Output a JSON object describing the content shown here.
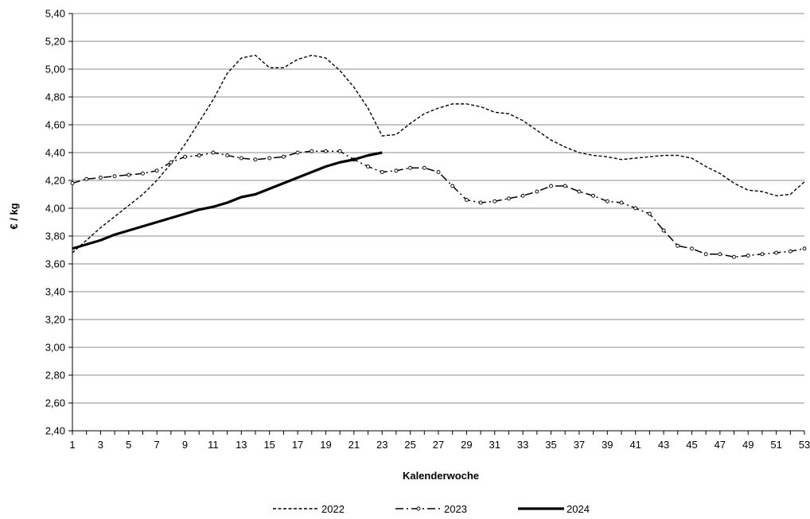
{
  "chart_data": {
    "type": "line",
    "xlabel": "Kalenderwoche",
    "ylabel": "€ / kg",
    "xlim": [
      1,
      53
    ],
    "ylim": [
      2.4,
      5.4
    ],
    "y_ticks": [
      "2,40",
      "2,60",
      "2,80",
      "3,00",
      "3,20",
      "3,40",
      "3,60",
      "3,80",
      "4,00",
      "4,20",
      "4,40",
      "4,60",
      "4,80",
      "5,00",
      "5,20",
      "5,40"
    ],
    "x_ticks": [
      "1",
      "3",
      "5",
      "7",
      "9",
      "11",
      "13",
      "15",
      "17",
      "19",
      "21",
      "23",
      "25",
      "27",
      "29",
      "31",
      "33",
      "35",
      "37",
      "39",
      "41",
      "43",
      "45",
      "47",
      "49",
      "51",
      "53"
    ],
    "grid": "horizontal",
    "legend": "bottom",
    "series": [
      {
        "name": "2022",
        "style": "dashed",
        "color": "#000000",
        "x": [
          1,
          2,
          3,
          4,
          5,
          6,
          7,
          8,
          9,
          10,
          11,
          12,
          13,
          14,
          15,
          16,
          17,
          18,
          19,
          20,
          21,
          22,
          23,
          24,
          25,
          26,
          27,
          28,
          29,
          30,
          31,
          32,
          33,
          34,
          35,
          36,
          37,
          38,
          39,
          40,
          41,
          42,
          43,
          44,
          45,
          46,
          47,
          48,
          49,
          50,
          51,
          52,
          53
        ],
        "values": [
          3.68,
          3.77,
          3.86,
          3.94,
          4.02,
          4.1,
          4.2,
          4.32,
          4.46,
          4.62,
          4.78,
          4.97,
          5.08,
          5.1,
          5.01,
          5.01,
          5.07,
          5.1,
          5.08,
          4.99,
          4.87,
          4.72,
          4.52,
          4.53,
          4.61,
          4.68,
          4.72,
          4.75,
          4.75,
          4.73,
          4.69,
          4.68,
          4.63,
          4.56,
          4.49,
          4.44,
          4.4,
          4.38,
          4.37,
          4.35,
          4.36,
          4.37,
          4.38,
          4.38,
          4.36,
          4.3,
          4.25,
          4.18,
          4.13,
          4.12,
          4.09,
          4.1,
          4.19
        ]
      },
      {
        "name": "2023",
        "style": "dash-dot-marker",
        "color": "#000000",
        "x": [
          1,
          2,
          3,
          4,
          5,
          6,
          7,
          8,
          9,
          10,
          11,
          12,
          13,
          14,
          15,
          16,
          17,
          18,
          19,
          20,
          21,
          22,
          23,
          24,
          25,
          26,
          27,
          28,
          29,
          30,
          31,
          32,
          33,
          34,
          35,
          36,
          37,
          38,
          39,
          40,
          41,
          42,
          43,
          44,
          45,
          46,
          47,
          48,
          49,
          50,
          51,
          52,
          53
        ],
        "values": [
          4.18,
          4.21,
          4.22,
          4.23,
          4.24,
          4.25,
          4.27,
          4.33,
          4.37,
          4.38,
          4.4,
          4.38,
          4.36,
          4.35,
          4.36,
          4.37,
          4.4,
          4.41,
          4.41,
          4.41,
          4.35,
          4.3,
          4.26,
          4.27,
          4.29,
          4.29,
          4.26,
          4.16,
          4.06,
          4.04,
          4.05,
          4.07,
          4.09,
          4.12,
          4.16,
          4.16,
          4.12,
          4.09,
          4.05,
          4.04,
          4.0,
          3.96,
          3.84,
          3.73,
          3.71,
          3.67,
          3.67,
          3.65,
          3.66,
          3.67,
          3.68,
          3.69,
          3.71
        ]
      },
      {
        "name": "2024",
        "style": "solid-thick",
        "color": "#000000",
        "x": [
          1,
          2,
          3,
          4,
          5,
          6,
          7,
          8,
          9,
          10,
          11,
          12,
          13,
          14,
          15,
          16,
          17,
          18,
          19,
          20,
          21,
          22,
          23
        ],
        "values": [
          3.71,
          3.74,
          3.77,
          3.81,
          3.84,
          3.87,
          3.9,
          3.93,
          3.96,
          3.99,
          4.01,
          4.04,
          4.08,
          4.1,
          4.14,
          4.18,
          4.22,
          4.26,
          4.3,
          4.33,
          4.35,
          4.38,
          4.4
        ]
      }
    ]
  }
}
